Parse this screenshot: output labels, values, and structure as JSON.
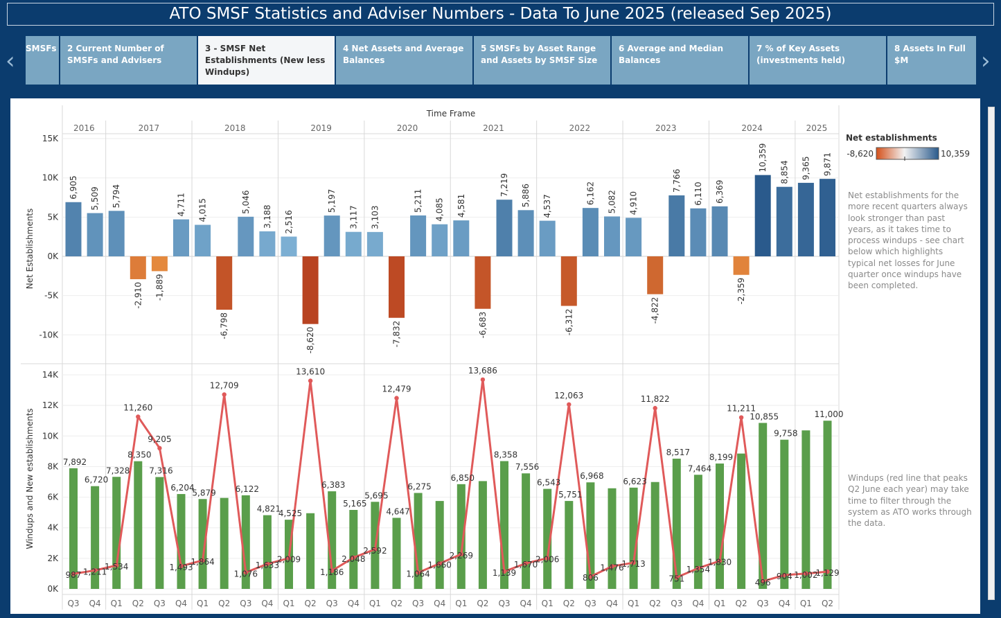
{
  "title": "ATO SMSF Statistics and Adviser Numbers - Data To June 2025 (released Sep 2025)",
  "tabs": [
    {
      "label": "SMSFs"
    },
    {
      "label": "2 Current Number of SMSFs and Advisers"
    },
    {
      "label": "3 - SMSF Net Establishments (New less Windups)"
    },
    {
      "label": "4 Net Assets and Average Balances"
    },
    {
      "label": "5 SMSFs by Asset Range and Assets by SMSF Size"
    },
    {
      "label": "6 Average and Median Balances"
    },
    {
      "label": "7 % of Key Assets (investments held)"
    },
    {
      "label": "8 Assets In Full $M"
    }
  ],
  "nav": {
    "prev": "‹",
    "next": "›"
  },
  "legend": {
    "title": "Net establishments",
    "min_label": "-8,620",
    "max_label": "10,359",
    "color_neg": "#d4501a",
    "color_mid": "#f2f2f2",
    "color_pos": "#2a5a8c"
  },
  "notes": {
    "top": "Net establishments for the more recent quarters always look stronger than past years, as it takes time to process windups - see chart below which highlights typical net losses for June quarter once windups have been completed.",
    "bottom": "Windups (red line that peaks Q2 June each year) may take time to filter through the system as ATO works through the data."
  },
  "chart_data": [
    {
      "type": "bar",
      "title": "Time Frame",
      "ylabel": "Net Establishments",
      "ylim": [
        -12000,
        16000
      ],
      "yticks": [
        -10000,
        -5000,
        0,
        5000,
        10000,
        15000
      ],
      "ytick_labels": [
        "-10K",
        "-5K",
        "0K",
        "5K",
        "10K",
        "15K"
      ],
      "years": [
        {
          "label": "2016",
          "quarters": [
            "Q3",
            "Q4"
          ]
        },
        {
          "label": "2017",
          "quarters": [
            "Q1",
            "Q2",
            "Q3",
            "Q4"
          ]
        },
        {
          "label": "2018",
          "quarters": [
            "Q1",
            "Q2",
            "Q3",
            "Q4"
          ]
        },
        {
          "label": "2019",
          "quarters": [
            "Q1",
            "Q2",
            "Q3",
            "Q4"
          ]
        },
        {
          "label": "2020",
          "quarters": [
            "Q1",
            "Q2",
            "Q3",
            "Q4"
          ]
        },
        {
          "label": "2021",
          "quarters": [
            "Q1",
            "Q2",
            "Q3",
            "Q4"
          ]
        },
        {
          "label": "2022",
          "quarters": [
            "Q1",
            "Q2",
            "Q3",
            "Q4"
          ]
        },
        {
          "label": "2023",
          "quarters": [
            "Q1",
            "Q2",
            "Q3",
            "Q4"
          ]
        },
        {
          "label": "2024",
          "quarters": [
            "Q1",
            "Q2",
            "Q3",
            "Q4"
          ]
        },
        {
          "label": "2025",
          "quarters": [
            "Q1",
            "Q2"
          ]
        }
      ],
      "values": [
        6905,
        5509,
        5794,
        -2910,
        -1889,
        4711,
        4015,
        -6798,
        5046,
        3188,
        2516,
        -8620,
        5197,
        3117,
        3103,
        -7832,
        5211,
        4085,
        4581,
        -6683,
        7219,
        5886,
        4537,
        -6312,
        6162,
        5082,
        4910,
        -4822,
        7766,
        6110,
        6369,
        -2359,
        10359,
        8854,
        9365,
        9871
      ],
      "value_labels": [
        "6,905",
        "5,509",
        "5,794",
        "-2,910",
        "-1,889",
        "4,711",
        "4,015",
        "-6,798",
        "5,046",
        "3,188",
        "2,516",
        "-8,620",
        "5,197",
        "3,117",
        "3,103",
        "-7,832",
        "5,211",
        "4,085",
        "4,581",
        "-6,683",
        "7,219",
        "5,886",
        "4,537",
        "-6,312",
        "6,162",
        "5,082",
        "4,910",
        "-4,822",
        "7,766",
        "6,110",
        "6,369",
        "-2,359",
        "10,359",
        "8,854",
        "9,365",
        "9,871"
      ]
    },
    {
      "type": "bar+line",
      "ylabel": "Windups and New establishments",
      "ylim": [
        0,
        15000
      ],
      "yticks": [
        0,
        2000,
        4000,
        6000,
        8000,
        10000,
        12000,
        14000
      ],
      "ytick_labels": [
        "0K",
        "2K",
        "4K",
        "6K",
        "8K",
        "10K",
        "12K",
        "14K"
      ],
      "series": [
        {
          "name": "New establishments",
          "color": "#5a9e4b",
          "values": [
            7892,
            6720,
            7328,
            8350,
            7316,
            6204,
            5879,
            5950,
            6122,
            4821,
            4525,
            4950,
            6383,
            5165,
            5695,
            4647,
            6275,
            5750,
            6850,
            7050,
            8358,
            7556,
            6543,
            5751,
            6968,
            6580,
            6623,
            6990,
            8517,
            7464,
            8199,
            8852,
            10855,
            9758,
            10367,
            11000
          ],
          "labels": [
            "7,892",
            "6,720",
            "7,328",
            "8,350",
            "7,316",
            "6,204",
            "5,879",
            "",
            "6,122",
            "4,821",
            "4,525",
            "",
            "6,383",
            "5,165",
            "5,695",
            "4,647",
            "6,275",
            "",
            "6,850",
            "",
            "8,358",
            "7,556",
            "6,543",
            "5,751",
            "6,968",
            "",
            "6,623",
            "",
            "8,517",
            "7,464",
            "8,199",
            "",
            "10,855",
            "9,758",
            "",
            "11,000"
          ]
        },
        {
          "name": "Windups",
          "color": "#e05a5a",
          "values": [
            987,
            1211,
            1534,
            11260,
            9205,
            1493,
            1864,
            12709,
            1076,
            1633,
            2009,
            13610,
            1186,
            2048,
            2592,
            12479,
            1064,
            1660,
            2269,
            13686,
            1139,
            1670,
            2006,
            12063,
            806,
            1476,
            1713,
            11822,
            751,
            1354,
            1830,
            11211,
            496,
            904,
            1002,
            1129
          ],
          "labels": [
            "987",
            "1,211",
            "1,534",
            "11,260",
            "9,205",
            "1,493",
            "1,864",
            "12,709",
            "1,076",
            "1,633",
            "2,009",
            "13,610",
            "1,186",
            "2,048",
            "2,592",
            "12,479",
            "1,064",
            "1,660",
            "2,269",
            "13,686",
            "1,139",
            "1,670",
            "2,006",
            "12,063",
            "806",
            "1,476",
            "1,713",
            "11,822",
            "751",
            "1,354",
            "1,830",
            "11,211",
            "496",
            "904",
            "1,002",
            "1,129"
          ]
        }
      ]
    }
  ]
}
